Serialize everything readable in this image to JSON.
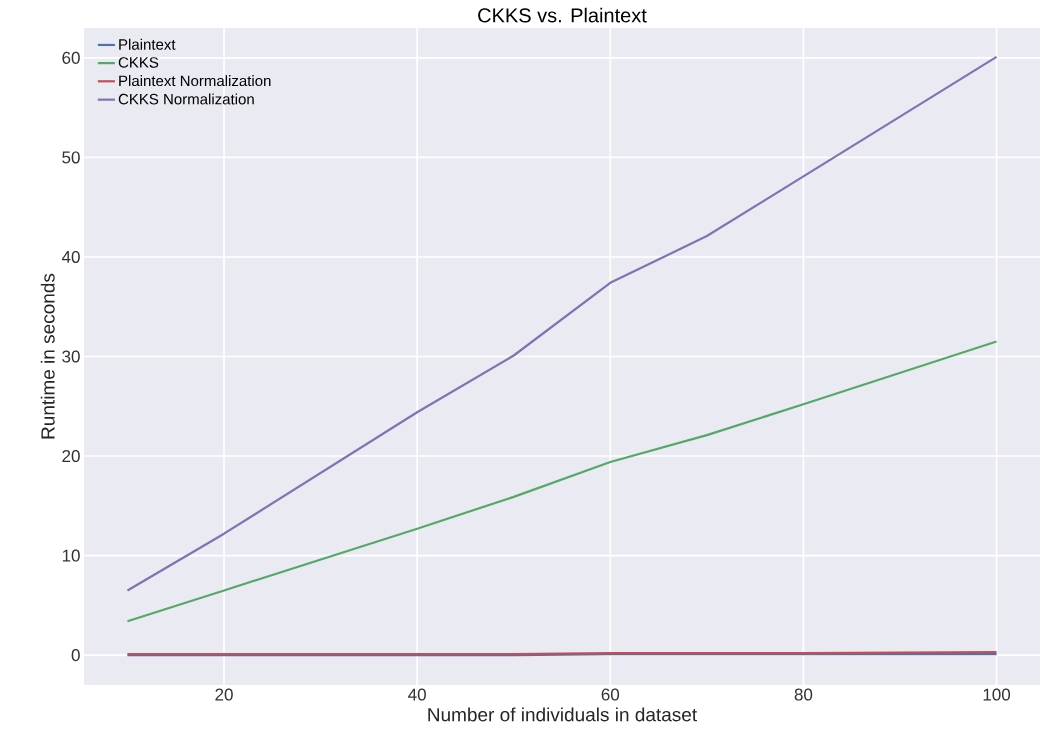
{
  "chart_data": {
    "type": "line",
    "title": "CKKS vs. Plaintext",
    "xlabel": "Number of individuals in dataset",
    "ylabel": "Runtime in seconds",
    "x": [
      10,
      20,
      40,
      50,
      60,
      70,
      80,
      100
    ],
    "series": [
      {
        "name": "Plaintext",
        "color": "#4c72b0",
        "values": [
          0,
          0,
          0,
          0,
          0.1,
          0.1,
          0.1,
          0.1
        ]
      },
      {
        "name": "CKKS",
        "color": "#55a868",
        "values": [
          3.4,
          6.5,
          12.7,
          15.9,
          19.4,
          22.1,
          25.2,
          31.5
        ]
      },
      {
        "name": "Plaintext Normalization",
        "color": "#c44e52",
        "values": [
          0.1,
          0.1,
          0.1,
          0.1,
          0.2,
          0.2,
          0.2,
          0.3
        ]
      },
      {
        "name": "CKKS Normalization",
        "color": "#8172b2",
        "values": [
          6.5,
          12.2,
          24.4,
          30.1,
          37.4,
          42.1,
          48.1,
          60.1
        ]
      }
    ],
    "xlim": [
      5.5,
      104.5
    ],
    "ylim": [
      -3,
      63
    ],
    "xticks": [
      20,
      40,
      60,
      80,
      100
    ],
    "yticks": [
      0,
      10,
      20,
      30,
      40,
      50,
      60
    ],
    "grid": true,
    "legend": "top left",
    "marker": "none",
    "line_style": "solid"
  }
}
